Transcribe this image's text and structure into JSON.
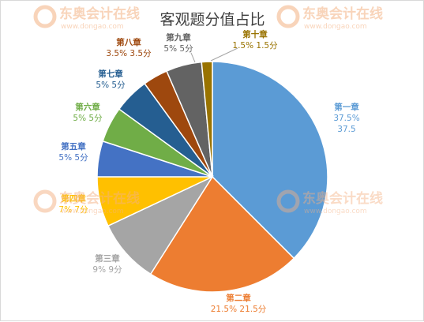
{
  "chart_data": {
    "type": "pie",
    "title": "客观题分值占比",
    "start_angle_deg": 0,
    "direction": "clockwise",
    "slices": [
      {
        "name": "第一章",
        "percent": "37.5%",
        "value": 37.5,
        "value_label": "37.5",
        "color": "#5b9bd5"
      },
      {
        "name": "第二章",
        "percent": "21.5%",
        "value": 21.5,
        "value_label": "21.5分",
        "color": "#ed7d31"
      },
      {
        "name": "第三章",
        "percent": "9%",
        "value": 9,
        "value_label": "9分",
        "color": "#a5a5a5"
      },
      {
        "name": "第四章",
        "percent": "7%",
        "value": 7,
        "value_label": "7分",
        "color": "#ffc000"
      },
      {
        "name": "第五章",
        "percent": "5%",
        "value": 5,
        "value_label": "5分",
        "color": "#4472c4"
      },
      {
        "name": "第六章",
        "percent": "5%",
        "value": 5,
        "value_label": "5分",
        "color": "#70ad47"
      },
      {
        "name": "第七章",
        "percent": "5%",
        "value": 5,
        "value_label": "5分",
        "color": "#255e91"
      },
      {
        "name": "第八章",
        "percent": "3.5%",
        "value": 3.5,
        "value_label": "3.5分",
        "color": "#9e480e"
      },
      {
        "name": "第九章",
        "percent": "5%",
        "value": 5,
        "value_label": "5分",
        "color": "#636363"
      },
      {
        "name": "第十章",
        "percent": "1.5%",
        "value": 1.5,
        "value_label": "1.5分",
        "color": "#997300"
      }
    ]
  },
  "watermark": {
    "brand": "东奥会计在线",
    "url": "www.dongao.com"
  }
}
